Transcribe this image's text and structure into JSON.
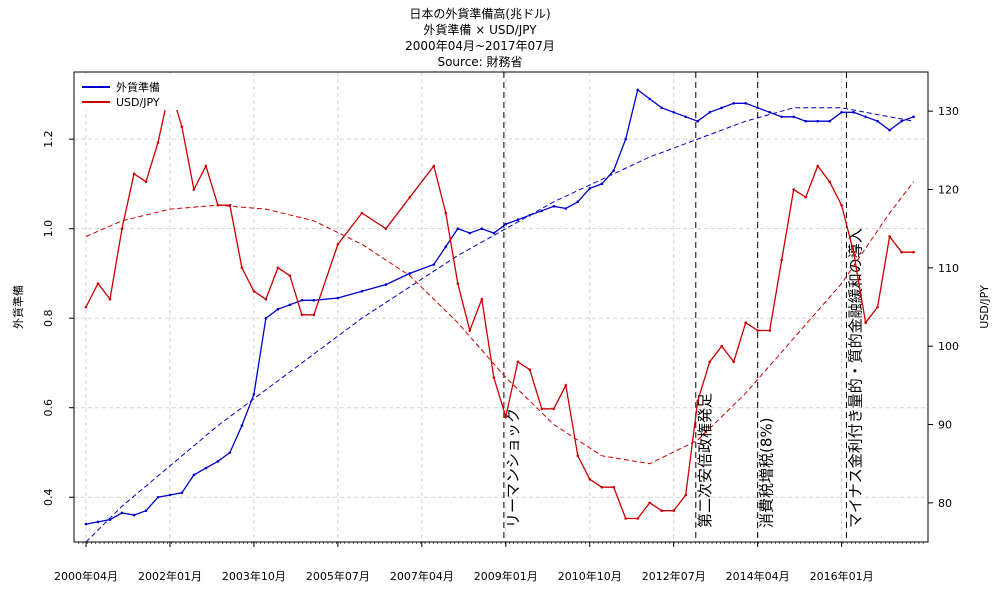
{
  "chart_data": {
    "type": "line",
    "title_lines": [
      "日本の外貨準備高(兆ドル)",
      "外貨準備 × USD/JPY",
      "2000年04月~2017年07月",
      "Source: 財務省"
    ],
    "ylabel": "外貨準備",
    "y2label": "USD/JPY",
    "xlim": [
      2000.0,
      2017.8
    ],
    "ylim": [
      0.3,
      1.35
    ],
    "y2lim": [
      75,
      135
    ],
    "x_ticks": [
      {
        "x": 2000.25,
        "label": "2000年04月"
      },
      {
        "x": 2002.0,
        "label": "2002年01月"
      },
      {
        "x": 2003.75,
        "label": "2003年10月"
      },
      {
        "x": 2005.5,
        "label": "2005年07月"
      },
      {
        "x": 2007.25,
        "label": "2007年04月"
      },
      {
        "x": 2009.0,
        "label": "2009年01月"
      },
      {
        "x": 2010.75,
        "label": "2010年10月"
      },
      {
        "x": 2012.5,
        "label": "2012年07月"
      },
      {
        "x": 2014.25,
        "label": "2014年04月"
      },
      {
        "x": 2016.0,
        "label": "2016年01月"
      }
    ],
    "y_ticks": [
      0.4,
      0.6,
      0.8,
      1.0,
      1.2
    ],
    "y2_ticks": [
      80,
      90,
      100,
      110,
      120,
      130
    ],
    "grid": true,
    "legend_position": "top-left",
    "series": [
      {
        "name": "外貨準備",
        "color": "#0000cc",
        "axis": "left",
        "x": [
          2000.25,
          2000.5,
          2000.75,
          2001.0,
          2001.25,
          2001.5,
          2001.75,
          2002.0,
          2002.25,
          2002.5,
          2002.75,
          2003.0,
          2003.25,
          2003.5,
          2003.75,
          2004.0,
          2004.25,
          2004.5,
          2004.75,
          2005.0,
          2005.5,
          2006.0,
          2006.5,
          2007.0,
          2007.5,
          2007.75,
          2008.0,
          2008.25,
          2008.5,
          2008.75,
          2009.0,
          2009.25,
          2009.5,
          2009.75,
          2010.0,
          2010.25,
          2010.5,
          2010.75,
          2011.0,
          2011.25,
          2011.5,
          2011.75,
          2012.0,
          2012.25,
          2012.5,
          2012.75,
          2013.0,
          2013.25,
          2013.5,
          2013.75,
          2014.0,
          2014.25,
          2014.5,
          2014.75,
          2015.0,
          2015.25,
          2015.5,
          2015.75,
          2016.0,
          2016.25,
          2016.5,
          2016.75,
          2017.0,
          2017.25,
          2017.5
        ],
        "values": [
          0.34,
          0.345,
          0.35,
          0.365,
          0.36,
          0.37,
          0.4,
          0.405,
          0.41,
          0.45,
          0.465,
          0.48,
          0.5,
          0.56,
          0.63,
          0.8,
          0.82,
          0.83,
          0.84,
          0.84,
          0.845,
          0.86,
          0.875,
          0.9,
          0.92,
          0.96,
          1.0,
          0.99,
          1.0,
          0.99,
          1.01,
          1.02,
          1.03,
          1.04,
          1.05,
          1.045,
          1.06,
          1.09,
          1.1,
          1.13,
          1.2,
          1.31,
          1.29,
          1.27,
          1.26,
          1.25,
          1.24,
          1.26,
          1.27,
          1.28,
          1.28,
          1.27,
          1.26,
          1.25,
          1.25,
          1.24,
          1.24,
          1.24,
          1.26,
          1.26,
          1.25,
          1.24,
          1.22,
          1.24,
          1.25
        ]
      },
      {
        "name": "USD/JPY",
        "color": "#cc0000",
        "axis": "right",
        "x": [
          2000.25,
          2000.5,
          2000.75,
          2001.0,
          2001.25,
          2001.5,
          2001.75,
          2002.0,
          2002.25,
          2002.5,
          2002.75,
          2003.0,
          2003.25,
          2003.5,
          2003.75,
          2004.0,
          2004.25,
          2004.5,
          2004.75,
          2005.0,
          2005.5,
          2006.0,
          2006.5,
          2007.0,
          2007.5,
          2007.75,
          2008.0,
          2008.25,
          2008.5,
          2008.75,
          2009.0,
          2009.25,
          2009.5,
          2009.75,
          2010.0,
          2010.25,
          2010.5,
          2010.75,
          2011.0,
          2011.25,
          2011.5,
          2011.75,
          2012.0,
          2012.25,
          2012.5,
          2012.75,
          2013.0,
          2013.25,
          2013.5,
          2013.75,
          2014.0,
          2014.25,
          2014.5,
          2014.75,
          2015.0,
          2015.25,
          2015.5,
          2015.75,
          2016.0,
          2016.25,
          2016.5,
          2016.75,
          2017.0,
          2017.25,
          2017.5
        ],
        "values": [
          105,
          108,
          106,
          115,
          122,
          121,
          126,
          133,
          128,
          120,
          123,
          118,
          118,
          110,
          107,
          106,
          110,
          109,
          104,
          104,
          113,
          117,
          115,
          119,
          123,
          117,
          108,
          102,
          106,
          96,
          91,
          98,
          97,
          92,
          92,
          95,
          86,
          83,
          82,
          82,
          78,
          78,
          80,
          79,
          79,
          81,
          93,
          98,
          100,
          98,
          103,
          102,
          102,
          111,
          120,
          119,
          123,
          121,
          118,
          112,
          103,
          105,
          114,
          112,
          112
        ]
      }
    ],
    "trend_lines": [
      {
        "name": "外貨準備 trend",
        "color": "#0000cc",
        "axis": "left",
        "x": [
          2000.25,
          2001.0,
          2002.0,
          2003.0,
          2004.0,
          2005.0,
          2006.0,
          2007.0,
          2008.0,
          2009.0,
          2010.0,
          2011.0,
          2012.0,
          2013.0,
          2014.0,
          2015.0,
          2016.0,
          2017.0,
          2017.5
        ],
        "values": [
          0.3,
          0.38,
          0.47,
          0.56,
          0.64,
          0.72,
          0.8,
          0.87,
          0.94,
          1.0,
          1.06,
          1.11,
          1.16,
          1.2,
          1.24,
          1.27,
          1.27,
          1.25,
          1.24
        ]
      },
      {
        "name": "USD/JPY trend",
        "color": "#cc0000",
        "axis": "right",
        "x": [
          2000.25,
          2001.0,
          2002.0,
          2003.0,
          2004.0,
          2005.0,
          2006.0,
          2007.0,
          2008.0,
          2009.0,
          2010.0,
          2011.0,
          2012.0,
          2013.0,
          2014.0,
          2015.0,
          2016.0,
          2017.0,
          2017.5
        ],
        "values": [
          114,
          116,
          117.5,
          118,
          117.5,
          116,
          113,
          109,
          103,
          96,
          90,
          86,
          85,
          88,
          94,
          101,
          108,
          117,
          121
        ]
      }
    ],
    "events": [
      {
        "x": 2008.96,
        "label": "リーマンショック"
      },
      {
        "x": 2012.96,
        "label": "第二次安倍政権発足"
      },
      {
        "x": 2014.25,
        "label": "消費税増税(8%)"
      },
      {
        "x": 2016.1,
        "label": "マイナス金利付き量的・質的金融緩和の導入"
      }
    ]
  }
}
